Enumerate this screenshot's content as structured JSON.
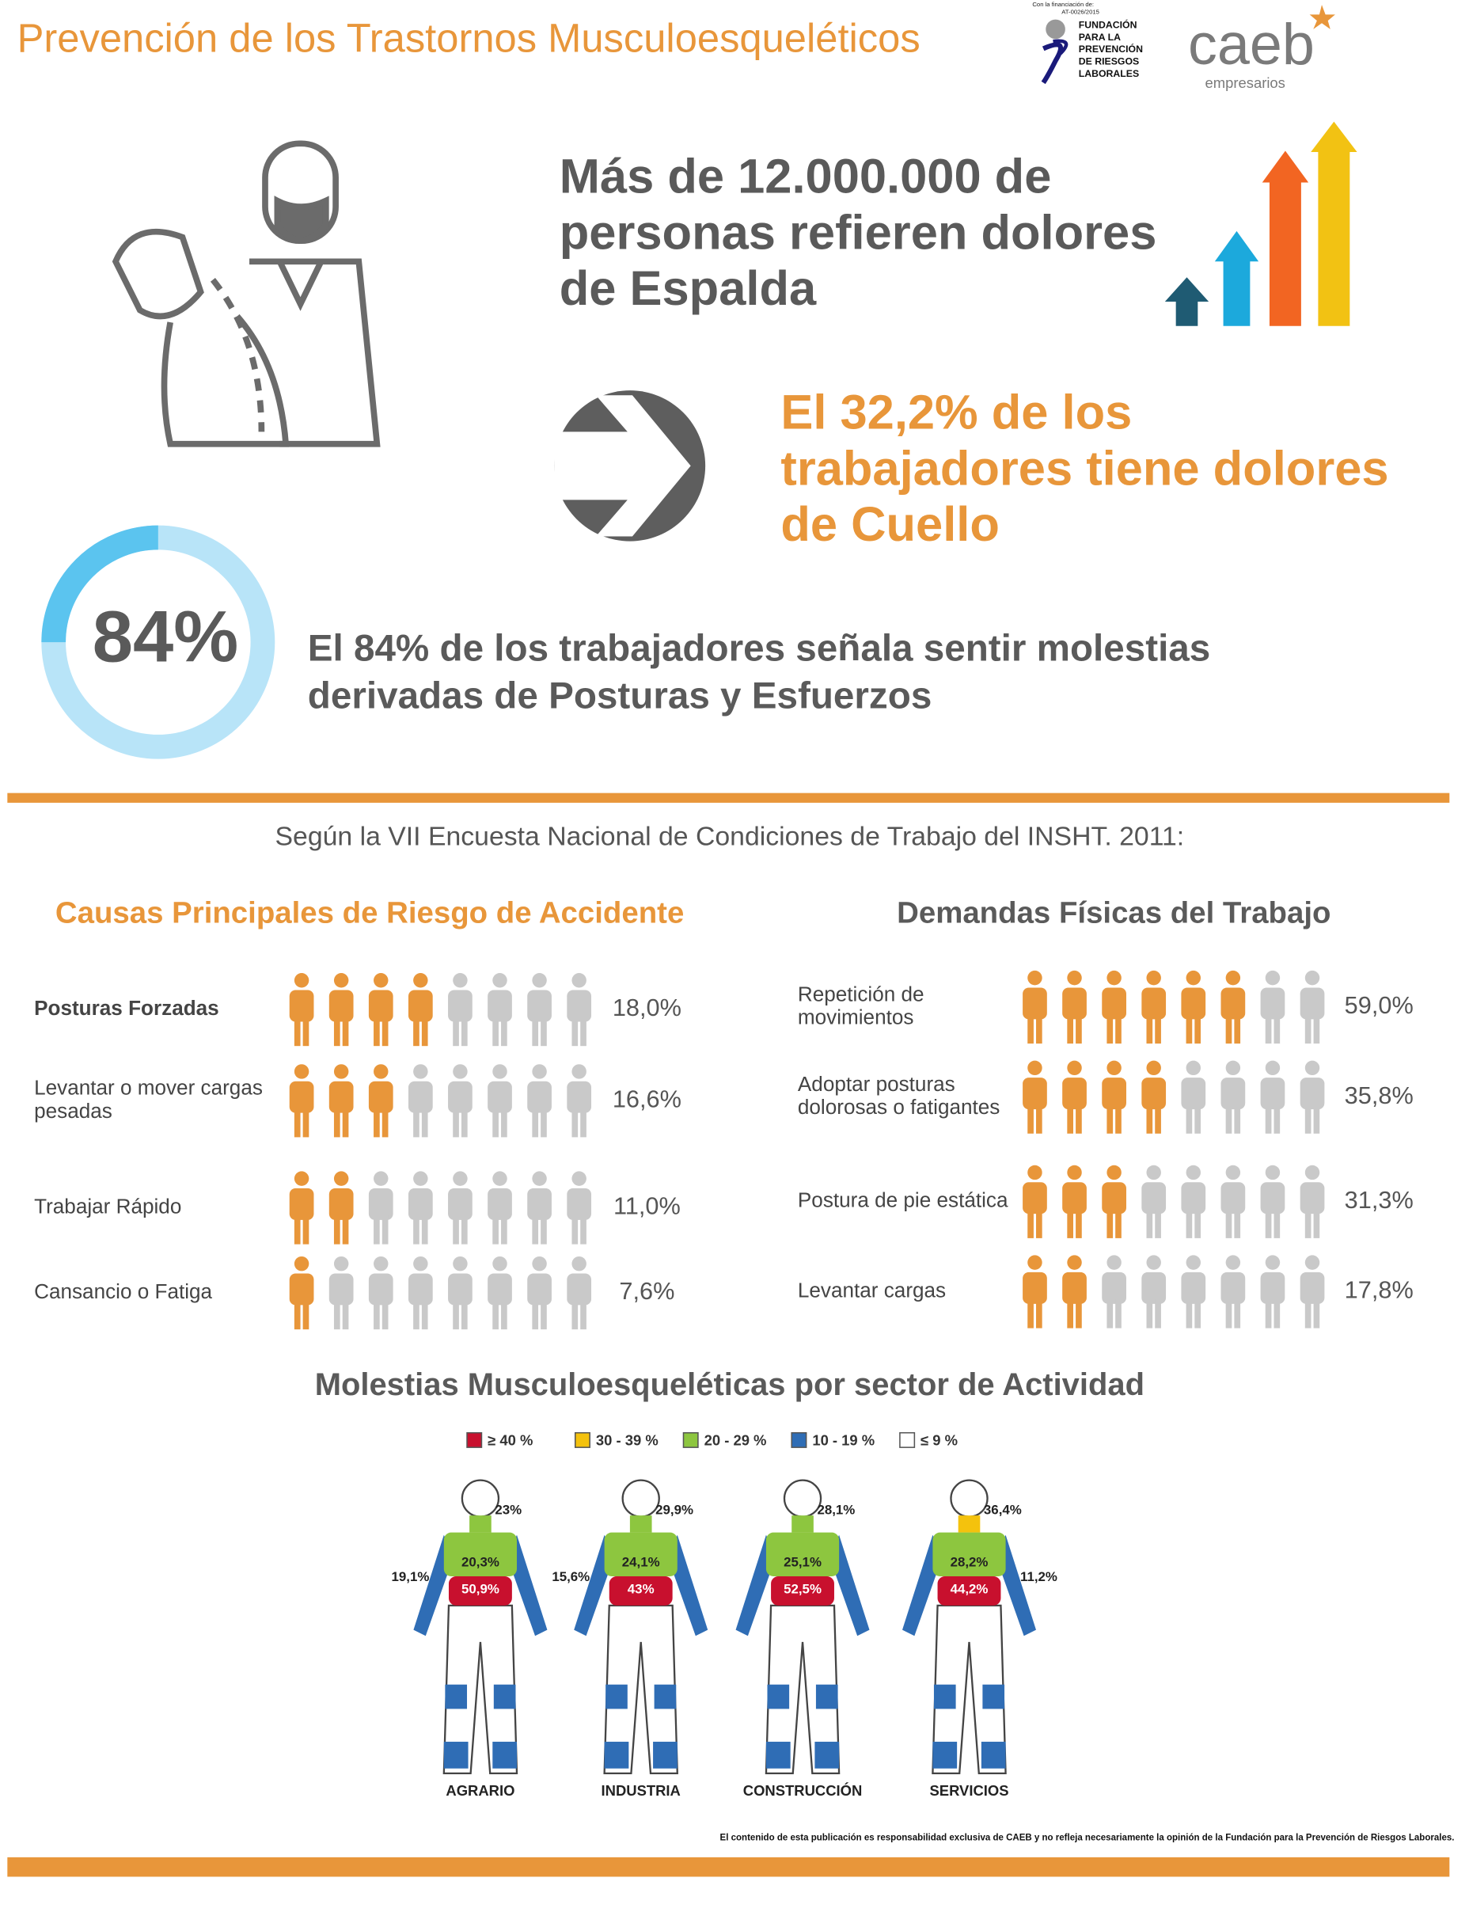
{
  "header": {
    "title": "Prevención de los Trastornos Musculoesqueléticos",
    "funding": "Con la financiación de:",
    "code": "AT-0026/2015",
    "foundation": [
      "FUNDACIÓN",
      "PARA LA",
      "PREVENCIÓN",
      "DE RIESGOS",
      "LABORALES"
    ],
    "brand": "caeb",
    "brand_sub": "empresarios"
  },
  "stats": {
    "back": [
      "Más de 12.000.000 de",
      "personas refieren dolores",
      "de Espalda"
    ],
    "neck": [
      "El 32,2% de los",
      "trabajadores tiene dolores",
      "de Cuello"
    ],
    "ring_label": "84%",
    "posture": [
      "El 84% de los trabajadores señala sentir molestias",
      "derivadas de Posturas y Esfuerzos"
    ]
  },
  "survey": {
    "source": "Según la VII Encuesta Nacional de Condiciones de Trabajo del INSHT. 2011:",
    "causes": {
      "title": "Causas Principales de Riesgo de Accidente",
      "total": 8,
      "rows": [
        {
          "label": [
            "Posturas Forzadas"
          ],
          "value": "18,0%",
          "filled": 4
        },
        {
          "label": [
            "Levantar o mover cargas",
            "pesadas"
          ],
          "value": "16,6%",
          "filled": 3
        },
        {
          "label": [
            "Trabajar Rápido"
          ],
          "value": "11,0%",
          "filled": 2
        },
        {
          "label": [
            "Cansancio o Fatiga"
          ],
          "value": "7,6%",
          "filled": 1
        }
      ]
    },
    "demands": {
      "title": "Demandas Físicas del Trabajo",
      "total": 8,
      "rows": [
        {
          "label": [
            "Repetición de",
            "movimientos"
          ],
          "value": "59,0%",
          "filled": 6
        },
        {
          "label": [
            "Adoptar posturas",
            "dolorosas o fatigantes"
          ],
          "value": "35,8%",
          "filled": 4
        },
        {
          "label": [
            "Postura de pie estática"
          ],
          "value": "31,3%",
          "filled": 3
        },
        {
          "label": [
            "Levantar cargas"
          ],
          "value": "17,8%",
          "filled": 2
        }
      ]
    }
  },
  "sectors": {
    "title": "Molestias Musculoesqueléticas por sector de Actividad",
    "legend": [
      {
        "label": "≥ 40 %",
        "color": "#c8102e"
      },
      {
        "label": "30 - 39 %",
        "color": "#f4c20d"
      },
      {
        "label": "20 - 29 %",
        "color": "#8dc63f"
      },
      {
        "label": "10 - 19 %",
        "color": "#2f6db5"
      },
      {
        "label": "≤ 9 %",
        "color": "#ffffff"
      }
    ],
    "figures": [
      {
        "name": "AGRARIO",
        "neck": "23%",
        "upper_back": "20,3%",
        "lower_back": "50,9%",
        "arm": "19,1%",
        "arm_side": "left",
        "neck_color": "#8dc63f"
      },
      {
        "name": "INDUSTRIA",
        "neck": "29,9%",
        "upper_back": "24,1%",
        "lower_back": "43%",
        "arm": "15,6%",
        "arm_side": "left",
        "neck_color": "#8dc63f"
      },
      {
        "name": "CONSTRUCCIÓN",
        "neck": "28,1%",
        "upper_back": "25,1%",
        "lower_back": "52,5%",
        "neck_color": "#8dc63f"
      },
      {
        "name": "SERVICIOS",
        "neck": "36,4%",
        "upper_back": "28,2%",
        "lower_back": "44,2%",
        "arm": "11,2%",
        "arm_side": "right",
        "neck_color": "#f4c20d"
      }
    ]
  },
  "footer": {
    "disclaimer": "El contenido de esta publicación es responsabilidad exclusiva de CAEB y no refleja necesariamente la opinión de la Fundación para la Prevención de Riesgos Laborales."
  }
}
